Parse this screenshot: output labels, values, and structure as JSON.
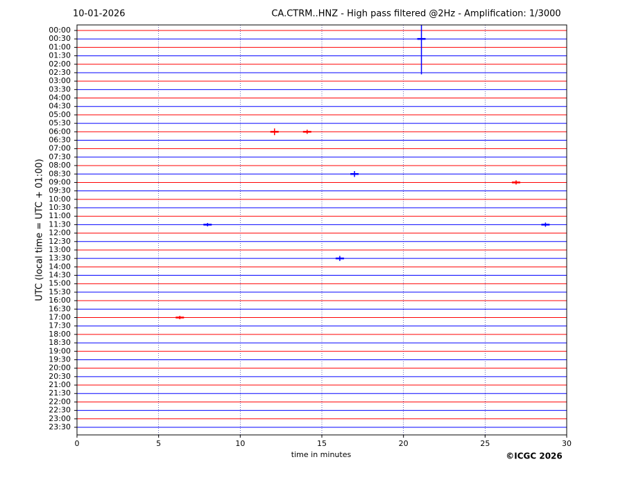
{
  "chart_data": {
    "type": "helicorder",
    "date": "10-01-2026",
    "title": "CA.CTRM..HNZ - High pass filtered @2Hz - Amplification: 1/3000",
    "ylabel": "UTC (local time = UTC + 01:00)",
    "xlabel": "time in minutes",
    "credit": "©ICGC 2026",
    "xlim": [
      0,
      30
    ],
    "xticks": [
      0,
      5,
      10,
      15,
      20,
      25,
      30
    ],
    "grid": true,
    "colors": [
      "#ff0000",
      "#0000ff"
    ],
    "categories": [
      "00:00",
      "00:30",
      "01:00",
      "01:30",
      "02:00",
      "02:30",
      "03:00",
      "03:30",
      "04:00",
      "04:30",
      "05:00",
      "05:30",
      "06:00",
      "06:30",
      "07:00",
      "07:30",
      "08:00",
      "08:30",
      "09:00",
      "09:30",
      "10:00",
      "10:30",
      "11:00",
      "11:30",
      "12:00",
      "12:30",
      "13:00",
      "13:30",
      "14:00",
      "14:30",
      "15:00",
      "15:30",
      "16:00",
      "16:30",
      "17:00",
      "17:30",
      "18:00",
      "18:30",
      "19:00",
      "19:30",
      "20:00",
      "20:30",
      "21:00",
      "21:30",
      "22:00",
      "22:30",
      "23:00",
      "23:30"
    ],
    "events": [
      {
        "line": "00:30",
        "minute": 21.1,
        "amplitude": 4.2
      },
      {
        "line": "06:00",
        "minute": 12.1,
        "amplitude": 0.4
      },
      {
        "line": "06:00",
        "minute": 14.1,
        "amplitude": 0.25
      },
      {
        "line": "08:30",
        "minute": 17.0,
        "amplitude": 0.35
      },
      {
        "line": "09:00",
        "minute": 26.9,
        "amplitude": 0.25
      },
      {
        "line": "11:30",
        "minute": 8.0,
        "amplitude": 0.2
      },
      {
        "line": "11:30",
        "minute": 28.7,
        "amplitude": 0.25
      },
      {
        "line": "13:30",
        "minute": 16.1,
        "amplitude": 0.3
      },
      {
        "line": "17:00",
        "minute": 6.3,
        "amplitude": 0.2
      }
    ]
  }
}
